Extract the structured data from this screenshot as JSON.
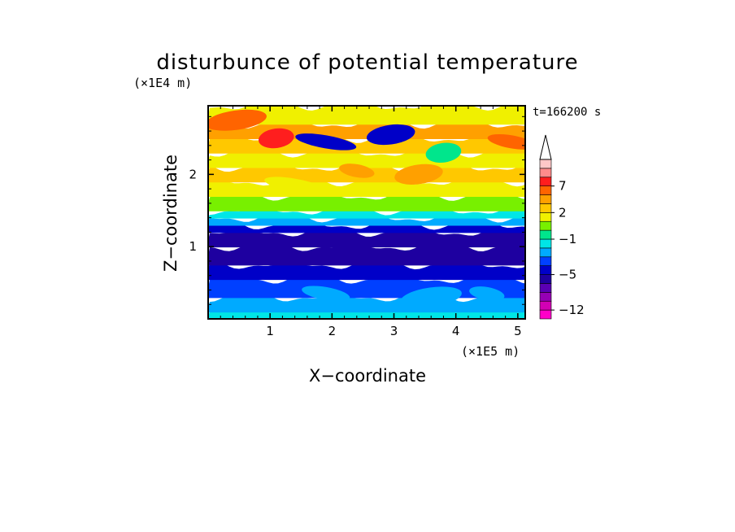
{
  "chart_data": {
    "type": "heatmap",
    "title": "disturbunce of potential temperature",
    "xlabel": "X−coordinate",
    "ylabel": "Z−coordinate",
    "x_unit": "(×1E5 m)",
    "y_unit": "(×1E4 m)",
    "time_label": "t=166200 s",
    "xlim": [
      0,
      5.12
    ],
    "ylim": [
      0,
      2.95
    ],
    "x_ticks": [
      1,
      2,
      3,
      4,
      5
    ],
    "y_ticks": [
      1,
      2
    ],
    "x_tick_labels": [
      "1",
      "2",
      "3",
      "4",
      "5"
    ],
    "y_tick_labels": [
      "1",
      "2"
    ],
    "colorbar": {
      "levels": [
        -14,
        -12,
        -10,
        -8,
        -6,
        -5,
        -4,
        -3,
        -2,
        -1,
        0,
        1,
        2,
        3,
        5,
        7,
        9,
        11
      ],
      "colors": [
        "#ff00c8",
        "#d200b4",
        "#9600b4",
        "#5a00b4",
        "#1e00a0",
        "#0000c8",
        "#0040ff",
        "#00aaff",
        "#00e6e6",
        "#00e68c",
        "#78f000",
        "#f0f000",
        "#ffc800",
        "#ffa000",
        "#ff6400",
        "#ff1e1e",
        "#ff8c8c",
        "#ffc8c8"
      ],
      "tick_labels": [
        "7",
        "2",
        "−1",
        "−5",
        "−12"
      ],
      "tick_values": [
        7,
        2,
        -1,
        -5,
        -12
      ],
      "extend": "max"
    },
    "field_bands": [
      {
        "z": 0.0,
        "value": -1.5
      },
      {
        "z": 0.1,
        "value": -3.0
      },
      {
        "z": 0.3,
        "value": -3.5
      },
      {
        "z": 0.55,
        "value": -4.2
      },
      {
        "z": 0.75,
        "value": -5.5
      },
      {
        "z": 1.0,
        "value": -5.6
      },
      {
        "z": 1.2,
        "value": -4.5
      },
      {
        "z": 1.3,
        "value": -3.0
      },
      {
        "z": 1.4,
        "value": -1.5
      },
      {
        "z": 1.5,
        "value": 0.5
      },
      {
        "z": 1.7,
        "value": 1.5
      },
      {
        "z": 1.9,
        "value": 2.5
      },
      {
        "z": 2.1,
        "value": 1.0
      },
      {
        "z": 2.3,
        "value": 2.5
      },
      {
        "z": 2.5,
        "value": 4.0
      },
      {
        "z": 2.7,
        "value": 1.5
      },
      {
        "z": 2.95,
        "value": -0.5
      }
    ],
    "features": [
      {
        "x": 2.95,
        "z": 2.55,
        "value": -5.5
      },
      {
        "x": 2.95,
        "z": 2.55,
        "value": -4.5
      },
      {
        "x": 1.9,
        "z": 2.45,
        "value": -4.5
      },
      {
        "x": 1.1,
        "z": 2.5,
        "value": 8.0
      },
      {
        "x": 4.9,
        "z": 2.45,
        "value": 5.5
      },
      {
        "x": 0.45,
        "z": 2.75,
        "value": 5.0
      },
      {
        "x": 2.4,
        "z": 2.05,
        "value": 4.5
      },
      {
        "x": 3.4,
        "z": 2.0,
        "value": 4.0
      },
      {
        "x": 1.4,
        "z": 1.85,
        "value": 1.5
      },
      {
        "x": 3.8,
        "z": 2.3,
        "value": -0.5
      },
      {
        "x": 1.9,
        "z": 0.35,
        "value": -2.5
      },
      {
        "x": 3.6,
        "z": 0.3,
        "value": -2.5
      },
      {
        "x": 4.5,
        "z": 0.35,
        "value": -2.5
      }
    ]
  }
}
